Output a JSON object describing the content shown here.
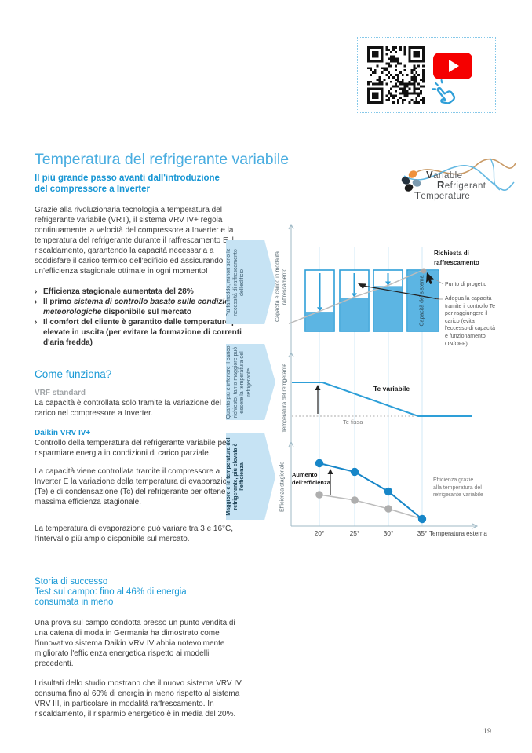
{
  "page_number": "19",
  "qr_panel": {
    "icons": [
      "qr-code",
      "youtube-play",
      "click-hand"
    ]
  },
  "vrt_logo": {
    "words": [
      "Variable",
      "Refrigerant",
      "Temperature"
    ]
  },
  "title": "Temperatura del refrigerante variabile",
  "intro": {
    "heading_line1": "Il più grande passo avanti dall'introduzione",
    "heading_line2": "del compressore a Inverter",
    "paragraph": "Grazie alla rivoluzionaria tecnologia a temperatura del refrigerante variabile (VRT), il sistema VRV IV+ regola continuamente la velocità del compressore a Inverter e la temperatura del refrigerante durante il raffrescamento E il riscaldamento, garantendo la capacità necessaria a soddisfare il carico termico dell'edificio ed assicurando un'efficienza stagionale ottimale in ogni momento!",
    "bullets": {
      "b1": "Efficienza stagionale aumentata del 28%",
      "b2_pre": "Il primo ",
      "b2_italic": "sistema di controllo basato sulle condizioni meteorologiche",
      "b2_post": " disponibile sul mercato",
      "b3": "Il comfort del cliente è garantito dalle temperature più elevate in uscita (per evitare la formazione di correnti d'aria fredda)"
    }
  },
  "come_funziona": {
    "heading": "Come funziona?",
    "vrf_label": "VRF standard",
    "vrf_text": "La capacità è controllata solo tramite la variazione del carico nel compressore a Inverter.",
    "daikin_label": "Daikin VRV IV+",
    "daikin_text": "Controllo della temperatura del refrigerante variabile per risparmiare energia in condizioni di carico parziale.",
    "paragraph2": "La capacità viene controllata tramite il compressore a Inverter E la variazione della temperatura di evaporazione (Te) e di condensazione (Tc) del refrigerante per ottenere la massima efficienza stagionale.",
    "paragraph3": "La temperatura di evaporazione può variare tra 3 e 16°C, l'intervallo più ampio disponibile sul mercato."
  },
  "storia": {
    "line1": "Storia di successo",
    "line2": "Test sul campo: fino al 46% di energia",
    "line3": "consumata in meno",
    "paragraph1": "Una prova sul campo condotta presso un punto vendita di una catena di moda in Germania ha dimostrato come l'innovativo sistema Daikin VRV IV abbia notevolmente migliorato l'efficienza energetica rispetto ai modelli precedenti.",
    "paragraph2": "I risultati dello studio mostrano che il nuovo sistema VRV IV consuma fino al 60% di energia in meno rispetto al sistema VRV III, in particolare in modalità raffrescamento. In riscaldamento, il risparmio energetico è in media del 20%."
  },
  "figure": {
    "chevrons": {
      "c1": "Più fa freddo, minori sono le necessità di raffrescamento dell'edificio",
      "c2": "Quanto più è inferiore il carico richiesto, tanto maggiore può essere la temperatura del refrigerante",
      "c3": "Maggiore è la temperatura del refrigerante, più elevata è l'efficienza"
    },
    "chart1": {
      "ylabel": "Capacità e carico in modalità raffrescamento",
      "richiesta_label": "Richiesta di raffrescamento",
      "punto_label": "Punto di progetto",
      "adegua_label": "Adegua la capacità tramite il controllo Te per raggiungere il carico (evita l'eccesso di capacità e funzionamento ON/OFF)",
      "bar4_label": "Capacità del sistema"
    },
    "chart2": {
      "ylabel": "Temperatura del refrigerante",
      "te_variabile_label": "Te variabile",
      "te_fissa_label": "Te fissa"
    },
    "chart3": {
      "ylabel": "Efficienza stagionale",
      "aumento_label": "Aumento dell'efficienza",
      "legend": "Efficienza grazie alla temperatura del refrigerante variabile",
      "xlabel": "Temperatura esterna"
    }
  },
  "chart_data": [
    {
      "type": "bar",
      "title": "Capacità e carico in modalità raffrescamento",
      "categories": [
        "20°",
        "25°",
        "30°",
        "35°"
      ],
      "series": [
        {
          "name": "Capacità del sistema",
          "values": [
            100,
            100,
            100,
            100
          ]
        },
        {
          "name": "Carico raffrescamento (richiesta)",
          "values": [
            33,
            56,
            75,
            100
          ]
        }
      ],
      "annotations": [
        "Richiesta di raffrescamento",
        "Punto di progetto",
        "Adegua la capacità tramite il controllo Te per raggiungere il carico (evita l'eccesso di capacità e funzionamento ON/OFF)"
      ],
      "units": "relative %"
    },
    {
      "type": "line",
      "title": "Temperatura del refrigerante",
      "series": [
        {
          "name": "Te variabile",
          "points": [
            [
              0,
              0
            ],
            [
              0.17,
              0
            ],
            [
              0.7,
              1
            ],
            [
              1,
              1
            ]
          ]
        },
        {
          "name": "Te fissa",
          "points": [
            [
              0,
              1
            ],
            [
              0.68,
              1
            ]
          ]
        }
      ],
      "note": "points are [x-fraction, y-fraction]; y 0 = higher refrigerant temperature, y 1 = fixed Te level"
    },
    {
      "type": "line",
      "title": "Efficienza stagionale",
      "categories": [
        "20°",
        "25°",
        "30°",
        "35°"
      ],
      "series": [
        {
          "name": "Te variabile (VRT)",
          "values": [
            80,
            69,
            44,
            9
          ]
        },
        {
          "name": "Te fissa (standard)",
          "values": [
            40,
            33,
            22,
            9
          ]
        }
      ],
      "xlabel": "Temperatura esterna",
      "ylabel": "Efficienza stagionale",
      "units": "relative (0-100)"
    }
  ],
  "colors": {
    "accent_blue": "#1796d4",
    "title_blue": "#49ade0",
    "bar_fill": "#5cb5e3",
    "bar_stroke": "#2e9fd8",
    "line_blue": "#1786c8",
    "line_gray": "#b3b3b3",
    "chevron_bg": "#c6e3f4",
    "grid_blue": "#cfe9f7",
    "youtube_red": "#f50000"
  }
}
